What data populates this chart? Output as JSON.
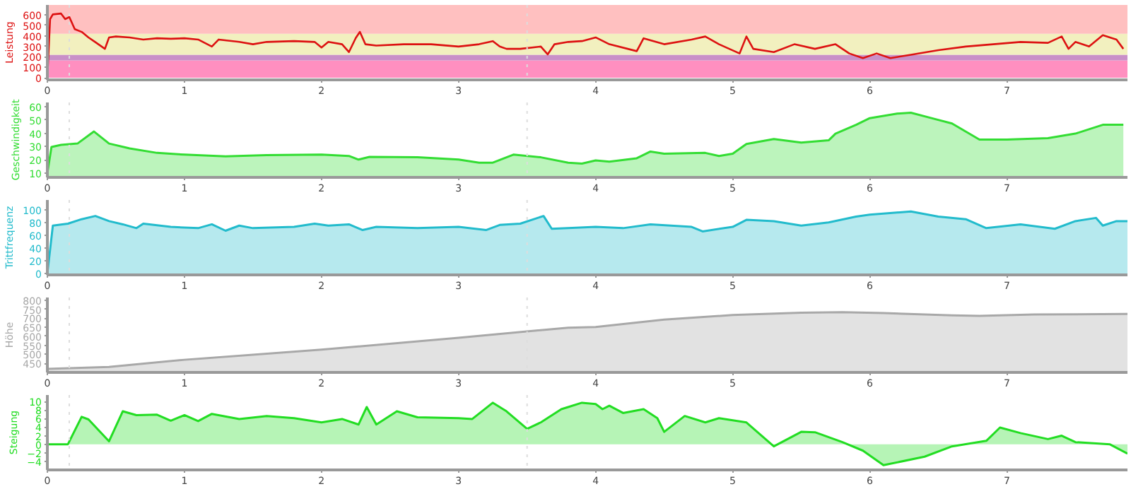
{
  "chart_data": [
    {
      "type": "line",
      "ylabel": "Leistung",
      "xlim": [
        0,
        7.88
      ],
      "xticks": [
        0,
        1,
        2,
        3,
        4,
        5,
        6,
        7
      ],
      "ylim": [
        -20,
        695
      ],
      "yticks": [
        0,
        100,
        200,
        300,
        400,
        500,
        600
      ],
      "bands": [
        {
          "axis": "y",
          "from": 0,
          "to": 165,
          "color": "#ff8fc0"
        },
        {
          "axis": "y",
          "from": 165,
          "to": 220,
          "color": "#c990c8"
        },
        {
          "axis": "y",
          "from": 220,
          "to": 420,
          "color": "#f2f0bf"
        },
        {
          "axis": "y",
          "from": 420,
          "to": 695,
          "color": "#ffc0c0"
        }
      ],
      "ref_lines": [
        {
          "axis": "x",
          "value": 0.16,
          "color": "#dddddd",
          "line_style": "dotted"
        },
        {
          "axis": "x",
          "value": 3.5,
          "color": "#dddddd",
          "line_style": "dotted"
        }
      ],
      "series": [
        {
          "color": "#dd1111",
          "x": [
            0,
            0.02,
            0.04,
            0.1,
            0.13,
            0.16,
            0.2,
            0.25,
            0.3,
            0.35,
            0.42,
            0.45,
            0.5,
            0.6,
            0.7,
            0.8,
            0.9,
            1.0,
            1.1,
            1.2,
            1.25,
            1.4,
            1.5,
            1.6,
            1.8,
            1.95,
            2.0,
            2.05,
            2.15,
            2.2,
            2.25,
            2.28,
            2.32,
            2.4,
            2.6,
            2.8,
            3.0,
            3.15,
            3.25,
            3.3,
            3.35,
            3.45,
            3.6,
            3.65,
            3.7,
            3.8,
            3.9,
            4.0,
            4.1,
            4.3,
            4.35,
            4.5,
            4.7,
            4.8,
            4.9,
            5.05,
            5.1,
            5.15,
            5.3,
            5.45,
            5.6,
            5.75,
            5.85,
            5.95,
            6.05,
            6.15,
            6.3,
            6.5,
            6.7,
            6.9,
            7.1,
            7.3,
            7.4,
            7.45,
            7.5,
            7.6,
            7.7,
            7.8,
            7.85
          ],
          "values": [
            0,
            560,
            605,
            613,
            560,
            580,
            464,
            438,
            385,
            340,
            276,
            385,
            394,
            385,
            365,
            377,
            372,
            377,
            365,
            298,
            365,
            342,
            320,
            342,
            350,
            342,
            289,
            342,
            320,
            245,
            380,
            438,
            320,
            307,
            320,
            320,
            298,
            320,
            350,
            298,
            276,
            276,
            298,
            223,
            320,
            342,
            350,
            385,
            320,
            254,
            377,
            320,
            365,
            394,
            320,
            232,
            394,
            276,
            245,
            320,
            276,
            320,
            232,
            188,
            232,
            188,
            219,
            263,
            298,
            320,
            342,
            333,
            394,
            276,
            342,
            298,
            407,
            365,
            276
          ]
        }
      ]
    },
    {
      "type": "area",
      "ylabel": "Geschwindigkeit",
      "xlim": [
        0,
        7.88
      ],
      "xticks": [
        0,
        1,
        2,
        3,
        4,
        5,
        6,
        7
      ],
      "ylim": [
        7,
        63
      ],
      "yticks": [
        10,
        20,
        30,
        40,
        50,
        60
      ],
      "ref_lines": [
        {
          "axis": "x",
          "value": 0.16,
          "color": "#dddddd",
          "line_style": "dotted"
        },
        {
          "axis": "x",
          "value": 3.5,
          "color": "#dddddd",
          "line_style": "dotted"
        }
      ],
      "series": [
        {
          "color": "#33dd33",
          "x": [
            0,
            0.03,
            0.1,
            0.22,
            0.34,
            0.45,
            0.6,
            0.8,
            1.0,
            1.3,
            1.6,
            2.0,
            2.2,
            2.27,
            2.35,
            2.7,
            3.0,
            3.15,
            3.25,
            3.4,
            3.6,
            3.8,
            3.9,
            4.0,
            4.1,
            4.3,
            4.4,
            4.5,
            4.8,
            4.9,
            5.0,
            5.1,
            5.3,
            5.5,
            5.7,
            5.75,
            5.9,
            6.0,
            6.2,
            6.3,
            6.45,
            6.6,
            6.8,
            7.0,
            7.3,
            7.5,
            7.7,
            7.85
          ],
          "values": [
            10,
            29.7,
            31.3,
            32.3,
            41.3,
            32.3,
            28.7,
            25.3,
            24,
            22.7,
            23.7,
            24,
            23,
            20.3,
            22.3,
            22,
            20.3,
            18,
            18,
            24,
            22,
            18,
            17.3,
            19.7,
            18.7,
            21.3,
            26.3,
            24.7,
            25.3,
            23,
            24.7,
            32,
            35.7,
            33,
            34.7,
            39.7,
            46.3,
            51.3,
            54.7,
            55.3,
            51.3,
            47.3,
            35.3,
            35.3,
            36.3,
            39.7,
            46.3,
            46.3
          ]
        }
      ]
    },
    {
      "type": "area",
      "ylabel": "Trittfrequenz",
      "xlim": [
        0,
        7.88
      ],
      "xticks": [
        0,
        1,
        2,
        3,
        4,
        5,
        6,
        7
      ],
      "ylim": [
        -2,
        115
      ],
      "yticks": [
        0,
        20,
        40,
        60,
        80,
        100
      ],
      "ref_lines": [
        {
          "axis": "x",
          "value": 0.16,
          "color": "#dddddd",
          "line_style": "dotted"
        },
        {
          "axis": "x",
          "value": 3.5,
          "color": "#dddddd",
          "line_style": "dotted"
        }
      ],
      "series": [
        {
          "color": "#22bbcc",
          "x": [
            0,
            0.04,
            0.15,
            0.25,
            0.35,
            0.45,
            0.55,
            0.65,
            0.7,
            0.9,
            1.1,
            1.2,
            1.3,
            1.4,
            1.5,
            1.8,
            1.95,
            2.05,
            2.2,
            2.3,
            2.4,
            2.7,
            3.0,
            3.2,
            3.3,
            3.45,
            3.62,
            3.68,
            3.8,
            4.0,
            4.2,
            4.4,
            4.7,
            4.78,
            5.0,
            5.1,
            5.3,
            5.5,
            5.7,
            5.9,
            6.0,
            6.3,
            6.5,
            6.7,
            6.85,
            7.1,
            7.35,
            7.5,
            7.65,
            7.7,
            7.8,
            7.88
          ],
          "values": [
            0,
            75,
            78,
            85,
            90,
            82,
            77,
            71,
            78,
            73,
            71,
            77,
            67,
            75,
            71,
            73,
            78,
            75,
            77,
            68,
            73,
            71,
            73,
            68,
            76,
            78,
            90,
            70,
            71,
            73,
            71,
            77,
            73,
            66,
            73,
            84,
            82,
            75,
            80,
            89,
            92,
            97,
            89,
            85,
            71,
            77,
            70,
            82,
            87,
            75,
            82,
            82
          ]
        }
      ]
    },
    {
      "type": "area",
      "ylabel": "Höhe",
      "xlim": [
        0,
        7.88
      ],
      "xticks": [
        0,
        1,
        2,
        3,
        4,
        5,
        6,
        7
      ],
      "ylim": [
        400,
        815
      ],
      "yticks": [
        450,
        500,
        550,
        600,
        650,
        700,
        750,
        800
      ],
      "ref_lines": [
        {
          "axis": "x",
          "value": 0.16,
          "color": "#dddddd",
          "line_style": "dotted"
        },
        {
          "axis": "x",
          "value": 3.5,
          "color": "#dddddd",
          "line_style": "dotted"
        }
      ],
      "series": [
        {
          "color": "#a8a8a8",
          "x": [
            0,
            0.45,
            1.0,
            2.0,
            3.0,
            3.8,
            4.0,
            4.5,
            5.0,
            5.5,
            5.8,
            6.1,
            6.6,
            6.8,
            7.2,
            7.88
          ],
          "values": [
            420,
            430,
            470,
            526,
            592,
            648,
            652,
            693,
            718,
            731,
            734,
            729,
            716,
            713,
            721,
            724
          ]
        }
      ]
    },
    {
      "type": "area",
      "ylabel": "Steigung",
      "xlim": [
        0,
        7.88
      ],
      "xticks": [
        0,
        1,
        2,
        3,
        4,
        5,
        6,
        7
      ],
      "ylim": [
        -6,
        11.5
      ],
      "yticks": [
        -4,
        -2,
        0,
        2,
        4,
        6,
        8,
        10
      ],
      "ref_lines": [
        {
          "axis": "x",
          "value": 0.16,
          "color": "#dddddd",
          "line_style": "dotted"
        },
        {
          "axis": "x",
          "value": 3.5,
          "color": "#dddddd",
          "line_style": "dotted"
        }
      ],
      "series": [
        {
          "color": "#22dd22",
          "x": [
            0,
            0.15,
            0.25,
            0.3,
            0.45,
            0.55,
            0.65,
            0.8,
            0.9,
            1.0,
            1.1,
            1.2,
            1.4,
            1.6,
            1.8,
            2.0,
            2.15,
            2.27,
            2.33,
            2.4,
            2.55,
            2.7,
            3.0,
            3.1,
            3.25,
            3.35,
            3.5,
            3.6,
            3.75,
            3.8,
            3.9,
            4.0,
            4.05,
            4.1,
            4.2,
            4.35,
            4.45,
            4.5,
            4.65,
            4.8,
            4.9,
            5.0,
            5.1,
            5.3,
            5.5,
            5.6,
            5.8,
            5.95,
            6.1,
            6.4,
            6.6,
            6.85,
            6.95,
            7.1,
            7.3,
            7.4,
            7.5,
            7.75,
            7.88
          ],
          "values": [
            0,
            0,
            6.4,
            5.8,
            0.7,
            7.7,
            6.8,
            6.9,
            5.5,
            6.8,
            5.4,
            7.1,
            5.9,
            6.6,
            6.1,
            5.1,
            5.9,
            4.6,
            8.7,
            4.6,
            7.7,
            6.3,
            6.1,
            5.9,
            9.7,
            7.7,
            3.6,
            5.1,
            8.2,
            8.7,
            9.7,
            9.4,
            8.2,
            9.0,
            7.3,
            8.2,
            6.1,
            2.9,
            6.6,
            5.1,
            6.1,
            5.6,
            5.1,
            -0.5,
            2.9,
            2.8,
            0.5,
            -1.5,
            -4.9,
            -2.9,
            -0.5,
            0.8,
            3.9,
            2.6,
            1.2,
            2.0,
            0.5,
            0,
            -2.2
          ]
        }
      ]
    }
  ]
}
